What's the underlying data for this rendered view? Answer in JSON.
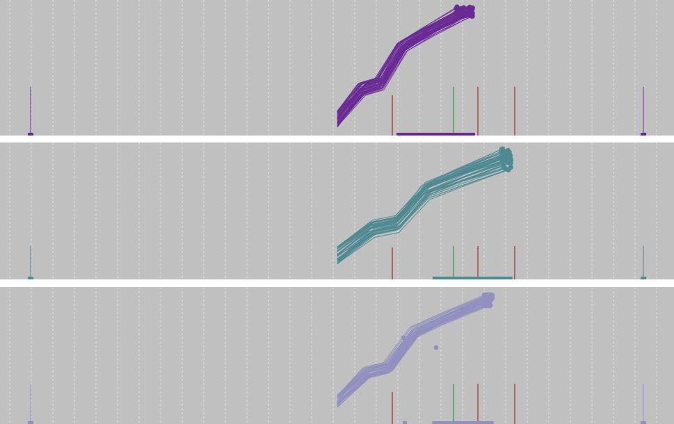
{
  "chart_data": [
    {
      "type": "line",
      "xlim": [
        0,
        969
      ],
      "ylim": [
        0,
        195
      ],
      "grid": true,
      "background": "#c0c0c0",
      "grid_color": "#e6e6e6",
      "color": "#6a2a94",
      "line_bundle": {
        "count": 46,
        "x_start": 485,
        "x_end_range": [
          655,
          680
        ],
        "y_start": [
          12,
          36
        ],
        "y_end": [
          170,
          186
        ],
        "shape": "two-step"
      },
      "outliers": [],
      "range_bar": {
        "x_start": 570,
        "x_end": 683,
        "y": 2
      },
      "markers": [
        {
          "x": 44,
          "height": 70,
          "color": "#8a5fb0"
        },
        {
          "x": 925,
          "height": 70,
          "color": "#8a5fb0"
        }
      ],
      "ref_lines": [
        {
          "x": 564,
          "y_top": 58,
          "color": "#a82020"
        },
        {
          "x": 652,
          "y_top": 70,
          "color": "#2a9a3a"
        },
        {
          "x": 687,
          "y_top": 70,
          "color": "#a82020"
        },
        {
          "x": 740,
          "y_top": 70,
          "color": "#a82020"
        }
      ]
    },
    {
      "type": "line",
      "xlim": [
        0,
        969
      ],
      "ylim": [
        0,
        197
      ],
      "grid": true,
      "background": "#c0c0c0",
      "grid_color": "#e6e6e6",
      "color": "#4f8a93",
      "line_bundle": {
        "count": 46,
        "x_start": 485,
        "x_end_range": [
          718,
          735
        ],
        "y_start": [
          22,
          48
        ],
        "y_end": [
          157,
          188
        ],
        "shape": "two-step"
      },
      "outliers": [],
      "range_bar": {
        "x_start": 622,
        "x_end": 737,
        "y": 2
      },
      "markers": [
        {
          "x": 44,
          "height": 48,
          "color": "#6a9aa2"
        },
        {
          "x": 925,
          "height": 48,
          "color": "#6a9aa2"
        }
      ],
      "ref_lines": [
        {
          "x": 564,
          "y_top": 46,
          "color": "#a82020"
        },
        {
          "x": 652,
          "y_top": 48,
          "color": "#2a9a3a"
        },
        {
          "x": 687,
          "y_top": 48,
          "color": "#a82020"
        },
        {
          "x": 740,
          "y_top": 48,
          "color": "#a82020"
        }
      ]
    },
    {
      "type": "line",
      "xlim": [
        0,
        969
      ],
      "ylim": [
        0,
        197
      ],
      "grid": true,
      "background": "#c0c0c0",
      "grid_color": "#e6e6e6",
      "color": "#9090c0",
      "line_bundle": {
        "count": 40,
        "x_start": 485,
        "x_end_range": [
          695,
          708
        ],
        "y_start": [
          24,
          42
        ],
        "y_end": [
          170,
          186
        ],
        "shape": "two-step"
      },
      "outliers": [
        {
          "x": 580,
          "y": 124
        },
        {
          "x": 627,
          "y": 110
        }
      ],
      "range_bar": {
        "x_start": 621,
        "x_end": 710,
        "y": 2
      },
      "markers": [
        {
          "x": 44,
          "height": 58,
          "color": "#a0a0c8"
        },
        {
          "x": 925,
          "height": 58,
          "color": "#a0a0c8"
        }
      ],
      "small_marks": [
        {
          "x": 582,
          "y": 2
        }
      ],
      "ref_lines": [
        {
          "x": 564,
          "y_top": 46,
          "color": "#a82020"
        },
        {
          "x": 652,
          "y_top": 58,
          "color": "#2a9a3a"
        },
        {
          "x": 687,
          "y_top": 58,
          "color": "#a82020"
        },
        {
          "x": 740,
          "y_top": 58,
          "color": "#a82020"
        }
      ]
    }
  ]
}
